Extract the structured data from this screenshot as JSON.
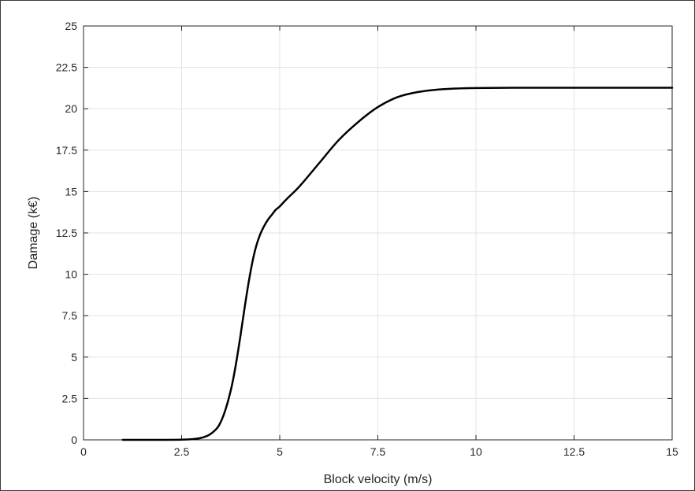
{
  "chart_data": {
    "type": "line",
    "title": "",
    "xlabel": "Block velocity (m/s)",
    "ylabel": "Damage (k€)",
    "xlim": [
      0,
      15
    ],
    "ylim": [
      0,
      25
    ],
    "x_ticks": [
      0,
      2.5,
      5,
      7.5,
      10,
      12.5,
      15
    ],
    "x_tick_labels": [
      "0",
      "2.5",
      "5",
      "7.5",
      "10",
      "12.5",
      "15"
    ],
    "y_ticks": [
      0,
      2.5,
      5,
      7.5,
      10,
      12.5,
      15,
      17.5,
      20,
      22.5,
      25
    ],
    "y_tick_labels": [
      "0",
      "2.5",
      "5",
      "7.5",
      "10",
      "12.5",
      "15",
      "17.5",
      "20",
      "22.5",
      "25"
    ],
    "grid": true,
    "series": [
      {
        "color": "#000000",
        "x": [
          1,
          2,
          2.5,
          2.8,
          3,
          3.2,
          3.4,
          3.5,
          3.6,
          3.7,
          3.8,
          3.9,
          4,
          4.1,
          4.2,
          4.3,
          4.4,
          4.5,
          4.6,
          4.7,
          4.8,
          4.9,
          5,
          5.2,
          5.5,
          6,
          6.5,
          7,
          7.5,
          8,
          8.5,
          9,
          9.5,
          10,
          11,
          12,
          13,
          14,
          15
        ],
        "y": [
          0,
          0,
          0.01,
          0.05,
          0.12,
          0.3,
          0.7,
          1.1,
          1.7,
          2.5,
          3.5,
          4.8,
          6.3,
          7.9,
          9.4,
          10.7,
          11.7,
          12.4,
          12.9,
          13.3,
          13.6,
          13.9,
          14.1,
          14.6,
          15.3,
          16.7,
          18.1,
          19.2,
          20.1,
          20.7,
          21,
          21.15,
          21.22,
          21.25,
          21.27,
          21.27,
          21.27,
          21.27,
          21.27
        ]
      }
    ]
  }
}
